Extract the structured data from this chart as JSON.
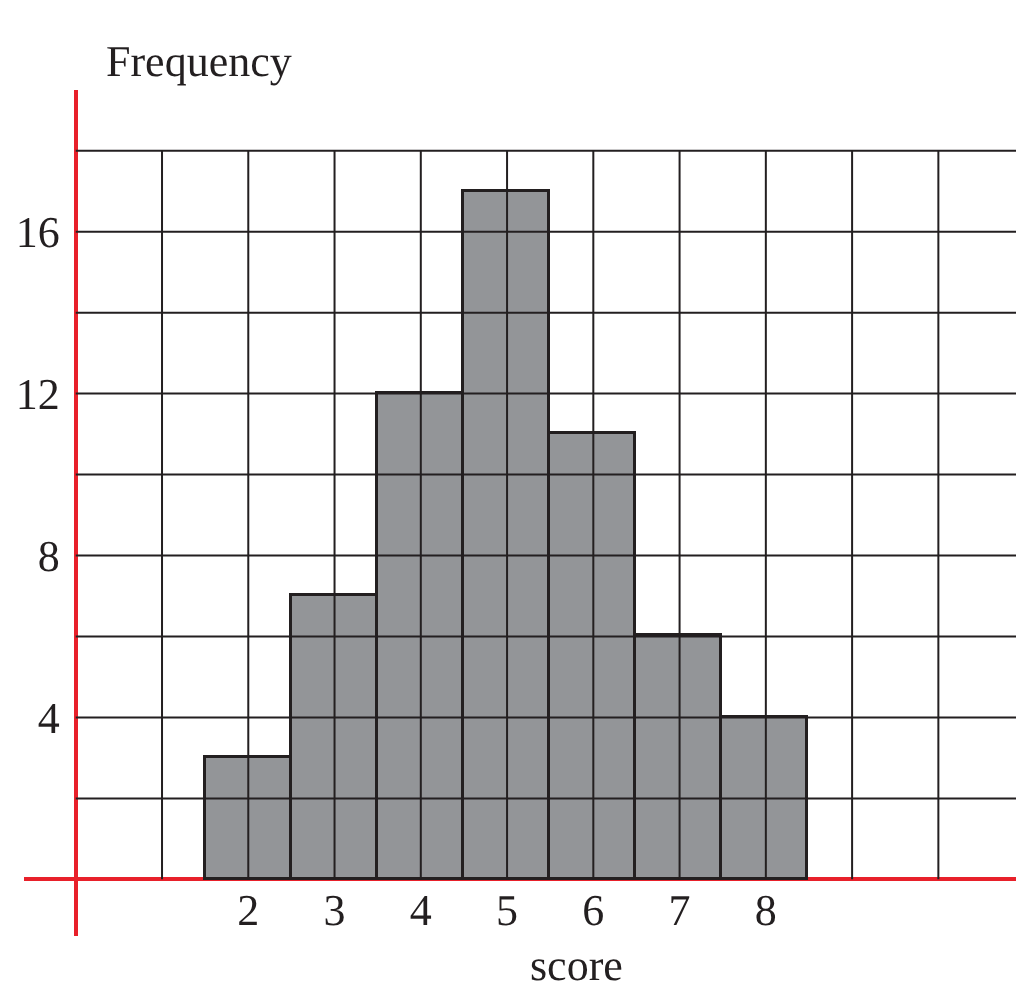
{
  "chart_data": {
    "type": "histogram",
    "xlabel": "score",
    "ylabel": "Frequency",
    "bins": [
      1.5,
      2.5,
      3.5,
      4.5,
      5.5,
      6.5,
      7.5,
      8.5
    ],
    "values": [
      3,
      7,
      12,
      17,
      11,
      6,
      4
    ],
    "color": "#939598",
    "xlim": [
      -0.6,
      10.9
    ],
    "ylim": [
      -1.4,
      19.5
    ],
    "xticks": [
      {
        "value": 1,
        "label": null
      },
      2,
      3,
      4,
      5,
      6,
      7,
      8,
      {
        "value": 9,
        "label": null
      },
      {
        "value": 10,
        "label": null
      }
    ],
    "yticks": [
      {
        "value": 2,
        "label": null
      },
      4,
      {
        "value": 6,
        "label": null
      },
      8,
      {
        "value": 10,
        "label": null
      },
      12,
      {
        "value": 14,
        "label": null
      },
      16,
      {
        "value": 18,
        "label": null
      }
    ],
    "grid": true
  }
}
